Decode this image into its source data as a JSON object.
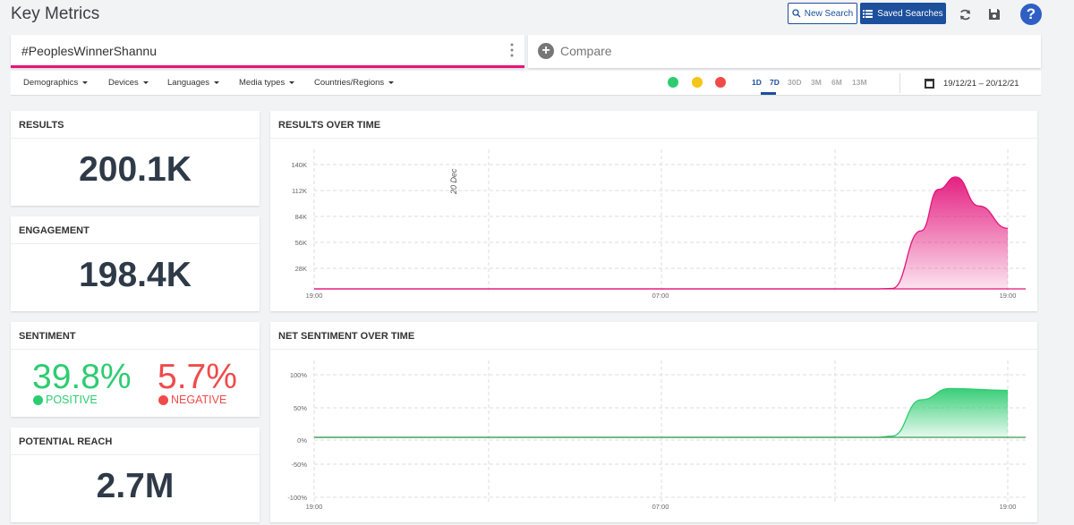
{
  "header": {
    "title": "Key Metrics",
    "new_search": "New Search",
    "saved_searches": "Saved Searches",
    "help": "?"
  },
  "search": {
    "query": "#PeoplesWinnerShannu",
    "compare": "Compare"
  },
  "filters": [
    "Demographics",
    "Devices",
    "Languages",
    "Media types",
    "Countries/Regions"
  ],
  "sentiment_filters": [
    {
      "name": "positive",
      "color": "#2ecc71"
    },
    {
      "name": "neutral",
      "color": "#f5c518"
    },
    {
      "name": "negative",
      "color": "#ef4b4b"
    }
  ],
  "ranges": {
    "items": [
      "1D",
      "7D",
      "30D",
      "3M",
      "6M",
      "13M"
    ],
    "active": "1D"
  },
  "date_range": "19/12/21 – 20/12/21",
  "cards": {
    "results": {
      "title": "RESULTS",
      "value": "200.1K"
    },
    "engagement": {
      "title": "ENGAGEMENT",
      "value": "198.4K"
    },
    "sentiment": {
      "title": "SENTIMENT",
      "positive_pct": "39.8%",
      "positive_label": "POSITIVE",
      "negative_pct": "5.7%",
      "negative_label": "NEGATIVE"
    },
    "reach": {
      "title": "POTENTIAL REACH",
      "value": "2.7M"
    }
  },
  "colors": {
    "brand": "#1c4f9c",
    "accent": "#e3157b",
    "positive": "#2ecc71",
    "negative": "#ef4b4b"
  },
  "chart_data": [
    {
      "type": "area",
      "title": "RESULTS OVER TIME",
      "y_ticks": [
        "140K",
        "112K",
        "84K",
        "56K",
        "28K"
      ],
      "x_ticks": [
        "19:00",
        "07:00",
        "19:00"
      ],
      "annotation": "20 Dec",
      "ylim": [
        0,
        150000
      ],
      "x": [
        0,
        19.5,
        20,
        21,
        21.6,
        22.2,
        23,
        24
      ],
      "values": [
        0,
        0,
        500,
        70000,
        120000,
        135000,
        100000,
        73000
      ],
      "grid": true
    },
    {
      "type": "area",
      "title": "NET SENTIMENT OVER TIME",
      "y_ticks": [
        "100%",
        "50%",
        "0%",
        "-50%",
        "-100%"
      ],
      "x_ticks": [
        "19:00",
        "07:00",
        "19:00"
      ],
      "ylim": [
        -100,
        100
      ],
      "x": [
        0,
        19.5,
        20,
        21,
        22,
        24
      ],
      "values": [
        0,
        0,
        2,
        60,
        78,
        75
      ],
      "grid": true
    }
  ]
}
